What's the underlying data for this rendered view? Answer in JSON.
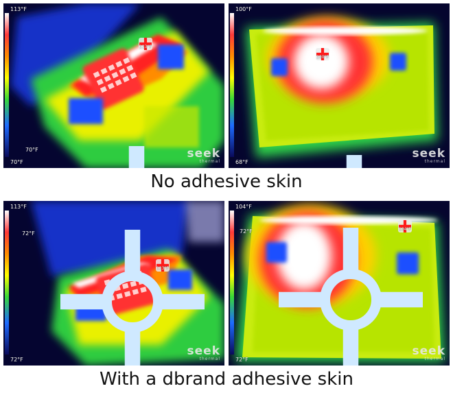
{
  "top_row": {
    "caption": "No adhesive skin",
    "left_image": {
      "scale_max": "113°F",
      "scale_min": "70°F",
      "spot_temp": "113°F",
      "cross_temp": "70°F",
      "logo_main": "seek",
      "logo_sub": "thermal"
    },
    "right_image": {
      "scale_max": "100°F",
      "scale_min": "68°F",
      "spot_temp": "100°F",
      "logo_main": "seek",
      "logo_sub": "thermal"
    }
  },
  "bottom_row": {
    "caption": "With a dbrand adhesive skin",
    "left_image": {
      "scale_max": "113°F",
      "scale_min": "72°F",
      "spot_temp": "113°F",
      "cross_temp": "72°F",
      "logo_main": "seek",
      "logo_sub": "thermal"
    },
    "right_image": {
      "scale_max": "104°F",
      "scale_min": "72°F",
      "spot_temp": "104°F",
      "cross_temp": "72°F",
      "logo_main": "seek",
      "logo_sub": "thermal"
    }
  },
  "colors": {
    "hot": "#ffffff",
    "warm": "#ff2a2a",
    "mid": "#ffee00",
    "cool": "#33cc33",
    "cold": "#1e5bff",
    "background": "#06063a"
  }
}
